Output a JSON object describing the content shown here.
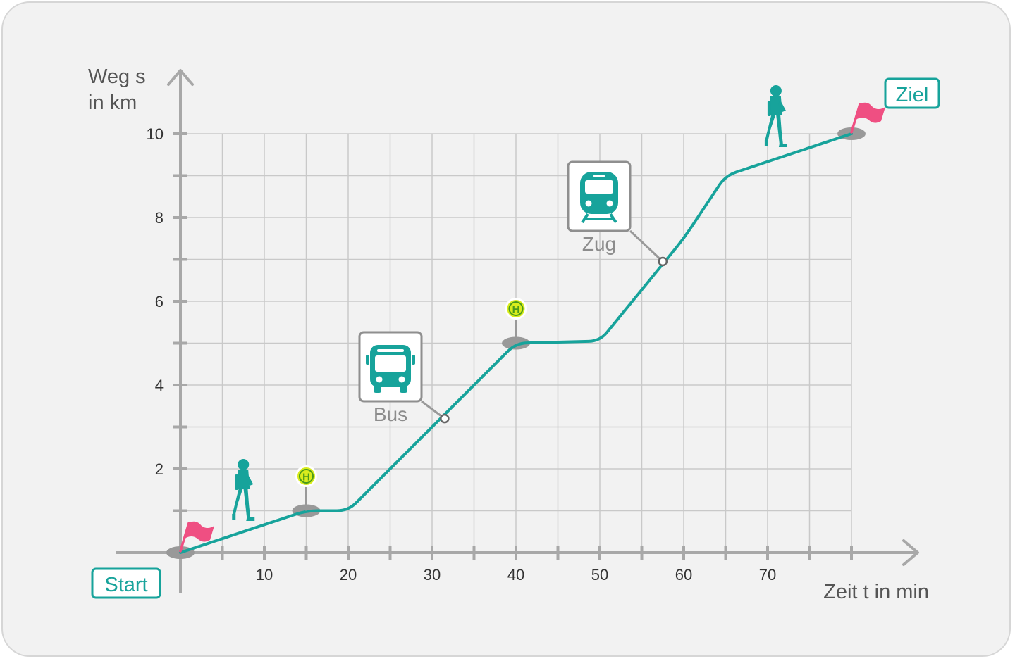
{
  "chart_data": {
    "type": "line",
    "title": "",
    "xlabel": "Zeit t in min",
    "ylabel": [
      "Weg s",
      "in km"
    ],
    "xlim": [
      0,
      80
    ],
    "ylim": [
      0,
      10
    ],
    "x_ticks": [
      10,
      20,
      30,
      40,
      50,
      60,
      70
    ],
    "y_ticks": [
      2,
      4,
      6,
      8,
      10
    ],
    "grid": true,
    "series": [
      {
        "name": "Weg",
        "color": "#17a39b",
        "x": [
          0,
          15,
          20,
          30,
          40,
          50,
          60,
          65,
          80
        ],
        "y": [
          0,
          1,
          1,
          3,
          5,
          5.05,
          7.5,
          9,
          10
        ]
      }
    ],
    "annotations": {
      "start": {
        "text": "Start",
        "x": 0,
        "y": 0
      },
      "ziel": {
        "text": "Ziel",
        "x": 80,
        "y": 10
      },
      "stops": [
        {
          "text": "H",
          "x": 15,
          "y": 1
        },
        {
          "text": "H",
          "x": 40,
          "y": 5
        }
      ],
      "vehicles": [
        {
          "text": "Bus",
          "icon": "bus-icon",
          "x": 31.5,
          "y": 3.2
        },
        {
          "text": "Zug",
          "icon": "train-icon",
          "x": 57.5,
          "y": 6.95
        }
      ],
      "walkers": [
        {
          "icon": "walking-person-icon",
          "x": 7.5
        },
        {
          "icon": "walking-person-icon",
          "x": 71
        }
      ]
    },
    "colors": {
      "line": "#17a39b",
      "grid": "#c9c9c9",
      "axis": "#a8a8a8",
      "flag": "#ef4f82",
      "stop_fill": "#d8ec1d",
      "stop_text": "#4a9a1b",
      "marker": "#999999"
    }
  }
}
